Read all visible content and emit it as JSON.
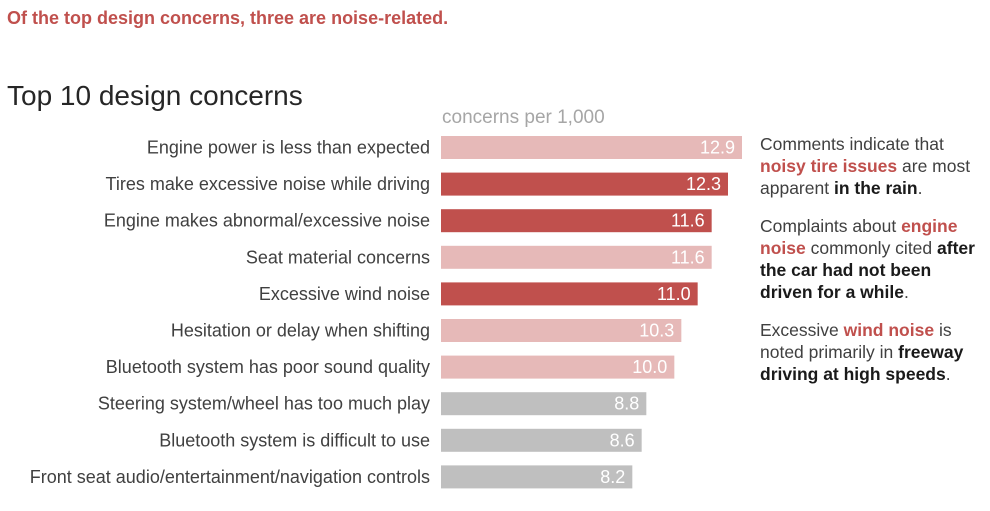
{
  "headline": "Of the top design concerns, three are noise-related.",
  "colors": {
    "noise": "#c0504d",
    "other_top": "#e6b9b8",
    "other": "#bfbfbf",
    "headline": "#c0504d"
  },
  "chart_data": {
    "type": "bar",
    "orientation": "horizontal",
    "title": "Top 10 design concerns",
    "xlabel": "concerns per 1,000",
    "xlim": [
      0,
      12.9
    ],
    "grid": false,
    "categories": [
      "Engine power is less than expected",
      "Tires make excessive noise while driving",
      "Engine makes abnormal/excessive noise",
      "Seat material concerns",
      "Excessive wind noise",
      "Hesitation or delay when shifting",
      "Bluetooth system has poor sound quality",
      "Steering system/wheel has too much play",
      "Bluetooth system is difficult to use",
      "Front seat audio/entertainment/navigation controls"
    ],
    "values": [
      12.9,
      12.3,
      11.6,
      11.6,
      11.0,
      10.3,
      10.0,
      8.8,
      8.6,
      8.2
    ],
    "value_labels": [
      "12.9",
      "12.3",
      "11.6",
      "11.6",
      "11.0",
      "10.3",
      "10.0",
      "8.8",
      "8.6",
      "8.2"
    ],
    "groups": [
      "other_top",
      "noise",
      "noise",
      "other_top",
      "noise",
      "other_top",
      "other_top",
      "other",
      "other",
      "other"
    ]
  },
  "notes": [
    [
      {
        "text": "Comments indicate that ",
        "style": "plain"
      },
      {
        "text": "noisy tire issues",
        "style": "hl"
      },
      {
        "text": " are most apparent ",
        "style": "plain"
      },
      {
        "text": "in the rain",
        "style": "em"
      },
      {
        "text": ".",
        "style": "plain"
      }
    ],
    [
      {
        "text": "Complaints about ",
        "style": "plain"
      },
      {
        "text": "engine noise",
        "style": "hl"
      },
      {
        "text": " commonly cited ",
        "style": "plain"
      },
      {
        "text": "after the car had not been driven for a while",
        "style": "em"
      },
      {
        "text": ".",
        "style": "plain"
      }
    ],
    [
      {
        "text": "Excessive ",
        "style": "plain"
      },
      {
        "text": "wind noise",
        "style": "hl"
      },
      {
        "text": " is noted primarily in ",
        "style": "plain"
      },
      {
        "text": "freeway driving at high speeds",
        "style": "em"
      },
      {
        "text": ".",
        "style": "plain"
      }
    ]
  ]
}
